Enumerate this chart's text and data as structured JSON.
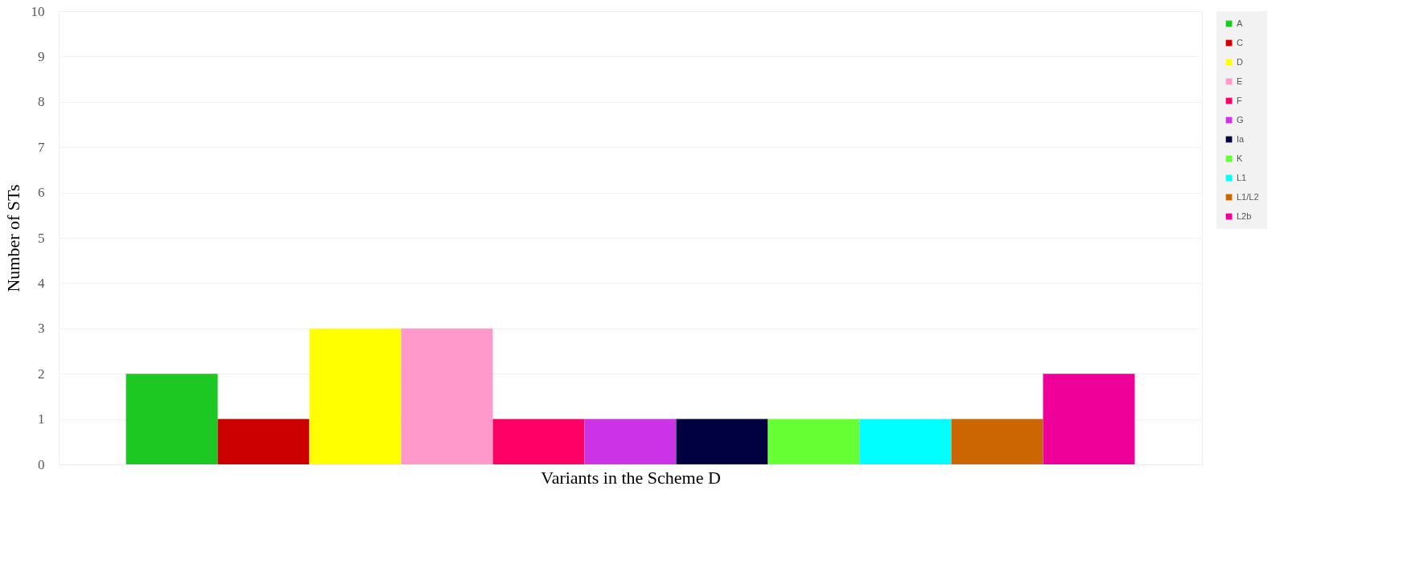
{
  "chart_data": {
    "type": "bar",
    "xlabel": "Variants in the Scheme D",
    "ylabel": "Number of STs",
    "categories": [
      null
    ],
    "series": [
      {
        "name": "A",
        "color": "#1ec823",
        "values": [
          2
        ]
      },
      {
        "name": "C",
        "color": "#cc0000",
        "values": [
          1
        ]
      },
      {
        "name": "D",
        "color": "#ffff00",
        "values": [
          3
        ]
      },
      {
        "name": "E",
        "color": "#ff99cc",
        "values": [
          3
        ]
      },
      {
        "name": "F",
        "color": "#ff0066",
        "values": [
          1
        ]
      },
      {
        "name": "G",
        "color": "#cc33e6",
        "values": [
          1
        ]
      },
      {
        "name": "Ia",
        "color": "#000040",
        "values": [
          1
        ]
      },
      {
        "name": "K",
        "color": "#66ff33",
        "values": [
          1
        ]
      },
      {
        "name": "L1",
        "color": "#00ffff",
        "values": [
          1
        ]
      },
      {
        "name": "L1/L2",
        "color": "#cc6600",
        "values": [
          1
        ]
      },
      {
        "name": "L2b",
        "color": "#ee0099",
        "values": [
          2
        ]
      }
    ],
    "ylim": [
      0,
      10
    ],
    "yticks": [
      0,
      1,
      2,
      3,
      4,
      5,
      6,
      7,
      8,
      9,
      10
    ],
    "grid": "y",
    "legend": "right"
  }
}
